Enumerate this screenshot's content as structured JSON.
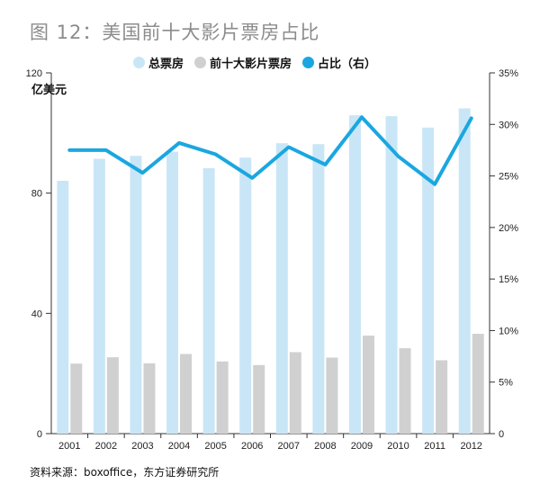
{
  "title": "图 12：美国前十大影片票房占比",
  "source": "资料来源：boxoffice，东方证券研究所",
  "colors": {
    "total": "#c9e6f7",
    "top10": "#d0d0d0",
    "share": "#1aa7e0"
  },
  "chart_data": {
    "type": "bar",
    "unit_label": "亿美元",
    "categories": [
      "2001",
      "2002",
      "2003",
      "2004",
      "2005",
      "2006",
      "2007",
      "2008",
      "2009",
      "2010",
      "2011",
      "2012"
    ],
    "series": [
      {
        "name": "总票房",
        "type": "bar",
        "axis": "left",
        "values": [
          84.1,
          91.4,
          92.4,
          93.8,
          88.3,
          91.8,
          96.6,
          96.3,
          105.9,
          105.6,
          101.8,
          108.2
        ]
      },
      {
        "name": "前十大影片票房",
        "type": "bar",
        "axis": "left",
        "values": [
          23.3,
          25.4,
          23.4,
          26.5,
          24.0,
          22.8,
          27.1,
          25.3,
          32.6,
          28.4,
          24.4,
          33.2
        ]
      },
      {
        "name": "占比（右）",
        "type": "line",
        "axis": "right",
        "values": [
          27.5,
          27.5,
          25.3,
          28.2,
          27.1,
          24.8,
          27.8,
          26.1,
          30.7,
          26.9,
          24.2,
          30.6
        ]
      }
    ],
    "y_left": {
      "ylim": [
        0,
        120
      ],
      "ticks": [
        "0",
        "40",
        "80",
        "120"
      ],
      "tick_values": [
        0,
        40,
        80,
        120
      ]
    },
    "y_right": {
      "ylim": [
        0,
        35
      ],
      "ticks": [
        "0",
        "5%",
        "10%",
        "15%",
        "20%",
        "25%",
        "30%",
        "35%"
      ],
      "tick_values": [
        0,
        5,
        10,
        15,
        20,
        25,
        30,
        35
      ]
    },
    "legend": "top"
  }
}
